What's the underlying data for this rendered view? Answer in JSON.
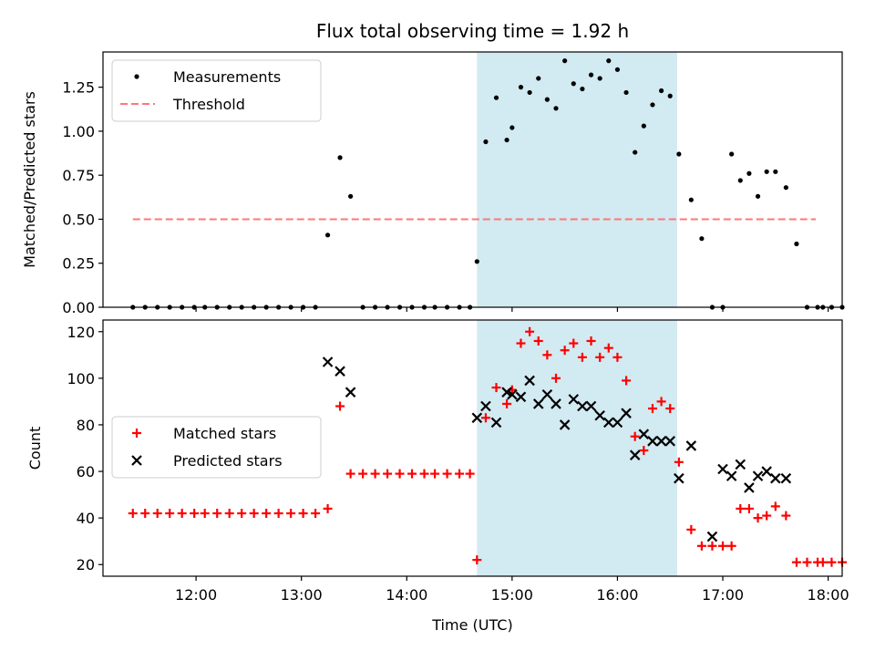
{
  "chart_data": [
    {
      "type": "scatter",
      "panel": "top",
      "title": "Flux total observing time = 1.92 h",
      "xlabel": "",
      "ylabel": "Matched/Predicted stars",
      "xlim": [
        "11:07",
        "18:08"
      ],
      "ylim": [
        0,
        1.45
      ],
      "yticks": [
        "0.00",
        "0.25",
        "0.50",
        "0.75",
        "1.00",
        "1.25"
      ],
      "yticks_values": [
        0,
        0.25,
        0.5,
        0.75,
        1.0,
        1.25
      ],
      "x_tick_values": [
        "12:00",
        "13:00",
        "14:00",
        "15:00",
        "16:00",
        "17:00",
        "18:00"
      ],
      "shaded_interval": {
        "start": "14:40",
        "end": "16:34",
        "color": "#add8e6"
      },
      "legend": {
        "location": "top-left",
        "entries": [
          "Measurements",
          "Threshold"
        ]
      },
      "colors": {
        "points": "#000000",
        "threshold": "#ff7777"
      },
      "series": [
        {
          "name": "Measurements",
          "marker": "dot",
          "x": [
            "11:24",
            "11:31",
            "11:38",
            "11:45",
            "11:52",
            "11:59",
            "12:05",
            "12:12",
            "12:19",
            "12:26",
            "12:33",
            "12:40",
            "12:47",
            "12:54",
            "13:01",
            "13:08",
            "13:15",
            "13:22",
            "13:28",
            "13:35",
            "13:42",
            "13:49",
            "13:56",
            "14:03",
            "14:10",
            "14:16",
            "14:23",
            "14:30",
            "14:36",
            "14:40",
            "14:45",
            "14:51",
            "14:57",
            "15:00",
            "15:05",
            "15:10",
            "15:15",
            "15:20",
            "15:25",
            "15:30",
            "15:35",
            "15:40",
            "15:45",
            "15:50",
            "15:55",
            "16:00",
            "16:05",
            "16:10",
            "16:15",
            "16:20",
            "16:25",
            "16:30",
            "16:35",
            "16:42",
            "16:48",
            "16:54",
            "17:00",
            "17:05",
            "17:10",
            "17:15",
            "17:20",
            "17:25",
            "17:30",
            "17:36",
            "17:42",
            "17:48",
            "17:54",
            "17:57",
            "18:02",
            "18:08"
          ],
          "y": [
            0,
            0,
            0,
            0,
            0,
            0,
            0,
            0,
            0,
            0,
            0,
            0,
            0,
            0,
            0,
            0,
            0.41,
            0.85,
            0.63,
            0,
            0,
            0,
            0,
            0,
            0,
            0,
            0,
            0,
            0,
            0.26,
            0.94,
            1.19,
            0.95,
            1.02,
            1.25,
            1.22,
            1.3,
            1.18,
            1.13,
            1.4,
            1.27,
            1.24,
            1.32,
            1.3,
            1.4,
            1.35,
            1.22,
            0.88,
            1.03,
            1.15,
            1.23,
            1.2,
            0.87,
            0.61,
            0.39,
            0,
            0,
            0.87,
            0.72,
            0.76,
            0.63,
            0.77,
            0.77,
            0.68,
            0.36,
            0,
            0,
            0,
            0,
            0
          ]
        },
        {
          "name": "Threshold",
          "style": "dashed",
          "x": [
            "11:24",
            "17:53"
          ],
          "y": [
            0.5,
            0.5
          ]
        }
      ]
    },
    {
      "type": "scatter",
      "panel": "bottom",
      "title": "",
      "xlabel": "Time (UTC)",
      "ylabel": "Count",
      "xlim": [
        "11:07",
        "18:08"
      ],
      "ylim": [
        15,
        125
      ],
      "yticks": [
        "20",
        "40",
        "60",
        "80",
        "100",
        "120"
      ],
      "yticks_values": [
        20,
        40,
        60,
        80,
        100,
        120
      ],
      "xticks": [
        "12:00",
        "13:00",
        "14:00",
        "15:00",
        "16:00",
        "17:00",
        "18:00"
      ],
      "x_tick_values": [
        "12:00",
        "13:00",
        "14:00",
        "15:00",
        "16:00",
        "17:00",
        "18:00"
      ],
      "shaded_interval": {
        "start": "14:40",
        "end": "16:34",
        "color": "#add8e6"
      },
      "legend": {
        "location": "center-left",
        "entries": [
          "Matched stars",
          "Predicted stars"
        ]
      },
      "colors": {
        "matched": "#ff0000",
        "predicted": "#000000"
      },
      "series": [
        {
          "name": "Matched stars",
          "marker": "plus",
          "x": [
            "11:24",
            "11:31",
            "11:38",
            "11:45",
            "11:52",
            "11:59",
            "12:05",
            "12:12",
            "12:19",
            "12:26",
            "12:33",
            "12:40",
            "12:47",
            "12:54",
            "13:01",
            "13:08",
            "13:15",
            "13:22",
            "13:28",
            "13:35",
            "13:42",
            "13:49",
            "13:56",
            "14:03",
            "14:10",
            "14:16",
            "14:23",
            "14:30",
            "14:36",
            "14:40",
            "14:45",
            "14:51",
            "14:57",
            "15:00",
            "15:05",
            "15:10",
            "15:15",
            "15:20",
            "15:25",
            "15:30",
            "15:35",
            "15:40",
            "15:45",
            "15:50",
            "15:55",
            "16:00",
            "16:05",
            "16:10",
            "16:15",
            "16:20",
            "16:25",
            "16:30",
            "16:35",
            "16:42",
            "16:48",
            "16:54",
            "17:00",
            "17:05",
            "17:10",
            "17:15",
            "17:20",
            "17:25",
            "17:30",
            "17:36",
            "17:42",
            "17:48",
            "17:54",
            "17:57",
            "18:02",
            "18:08"
          ],
          "y": [
            42,
            42,
            42,
            42,
            42,
            42,
            42,
            42,
            42,
            42,
            42,
            42,
            42,
            42,
            42,
            42,
            44,
            88,
            59,
            59,
            59,
            59,
            59,
            59,
            59,
            59,
            59,
            59,
            59,
            22,
            83,
            96,
            89,
            95,
            115,
            120,
            116,
            110,
            100,
            112,
            115,
            109,
            116,
            109,
            113,
            109,
            99,
            75,
            69,
            87,
            90,
            87,
            64,
            35,
            28,
            28,
            28,
            28,
            44,
            44,
            40,
            41,
            45,
            41,
            21,
            21,
            21,
            21,
            21,
            21
          ]
        },
        {
          "name": "Predicted stars",
          "marker": "x",
          "x": [
            "13:15",
            "13:22",
            "13:28",
            "14:40",
            "14:45",
            "14:51",
            "14:57",
            "15:00",
            "15:05",
            "15:10",
            "15:15",
            "15:20",
            "15:25",
            "15:30",
            "15:35",
            "15:40",
            "15:45",
            "15:50",
            "15:55",
            "16:00",
            "16:05",
            "16:10",
            "16:15",
            "16:20",
            "16:25",
            "16:30",
            "16:35",
            "16:42",
            "16:54",
            "17:00",
            "17:05",
            "17:10",
            "17:15",
            "17:20",
            "17:25",
            "17:30",
            "17:36"
          ],
          "y": [
            107,
            103,
            94,
            83,
            88,
            81,
            94,
            93,
            92,
            99,
            89,
            93,
            89,
            80,
            91,
            88,
            88,
            84,
            81,
            81,
            85,
            67,
            76,
            73,
            73,
            73,
            57,
            71,
            32,
            61,
            58,
            63,
            53,
            58,
            60,
            57,
            57
          ]
        }
      ]
    }
  ]
}
